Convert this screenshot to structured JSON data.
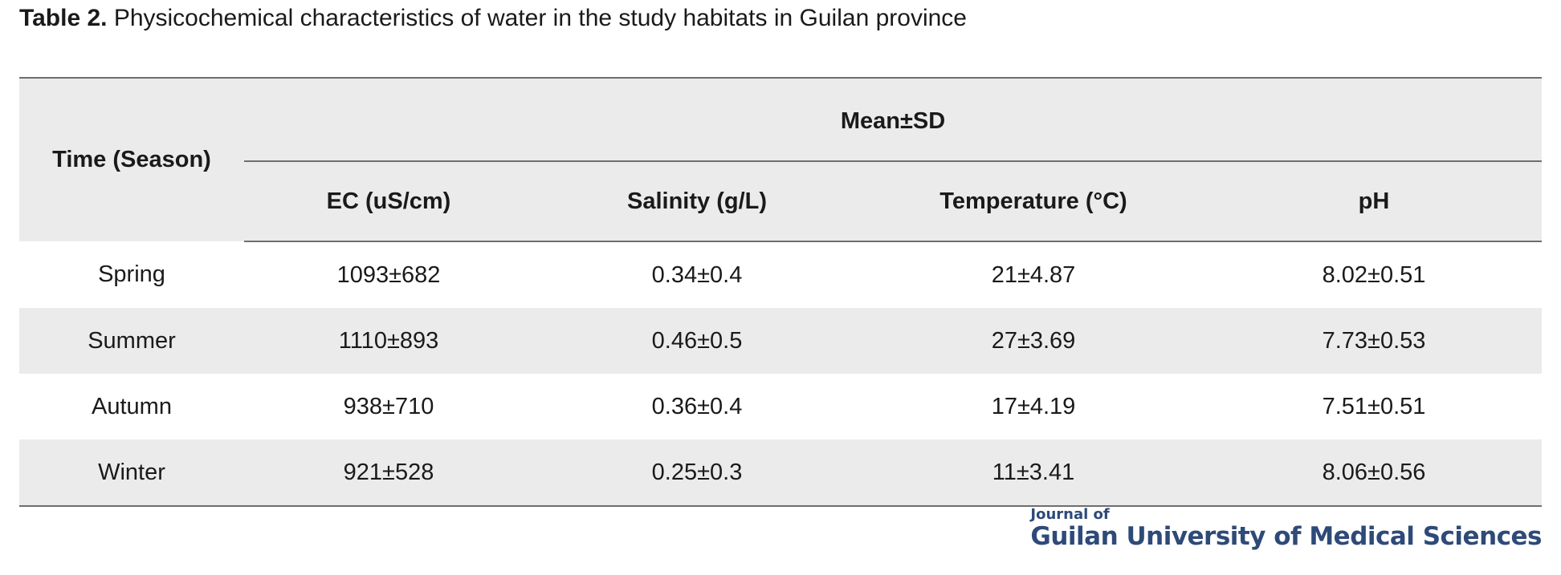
{
  "caption": {
    "label": "Table 2.",
    "text": " Physicochemical characteristics of water in the study habitats in Guilan province"
  },
  "table": {
    "row_header": "Time (Season)",
    "group_header": "Mean±SD",
    "columns": [
      "EC (uS/cm)",
      "Salinity (g/L)",
      "Temperature (°C)",
      "pH"
    ],
    "rows": [
      {
        "season": "Spring",
        "values": [
          "1093±682",
          "0.34±0.4",
          "21±4.87",
          "8.02±0.51"
        ]
      },
      {
        "season": "Summer",
        "values": [
          "1110±893",
          "0.46±0.5",
          "27±3.69",
          "7.73±0.53"
        ]
      },
      {
        "season": "Autumn",
        "values": [
          "938±710",
          "0.36±0.4",
          "17±4.19",
          "7.51±0.51"
        ]
      },
      {
        "season": "Winter",
        "values": [
          "921±528",
          "0.25±0.3",
          "11±3.41",
          "8.06±0.56"
        ]
      }
    ]
  },
  "journal": {
    "line1": "Journal of",
    "line2": "Guilan University of Medical Sciences"
  },
  "colors": {
    "header_fill": "#ebebeb",
    "rule": "#6e6e6e",
    "journal": "#2e4a78"
  }
}
